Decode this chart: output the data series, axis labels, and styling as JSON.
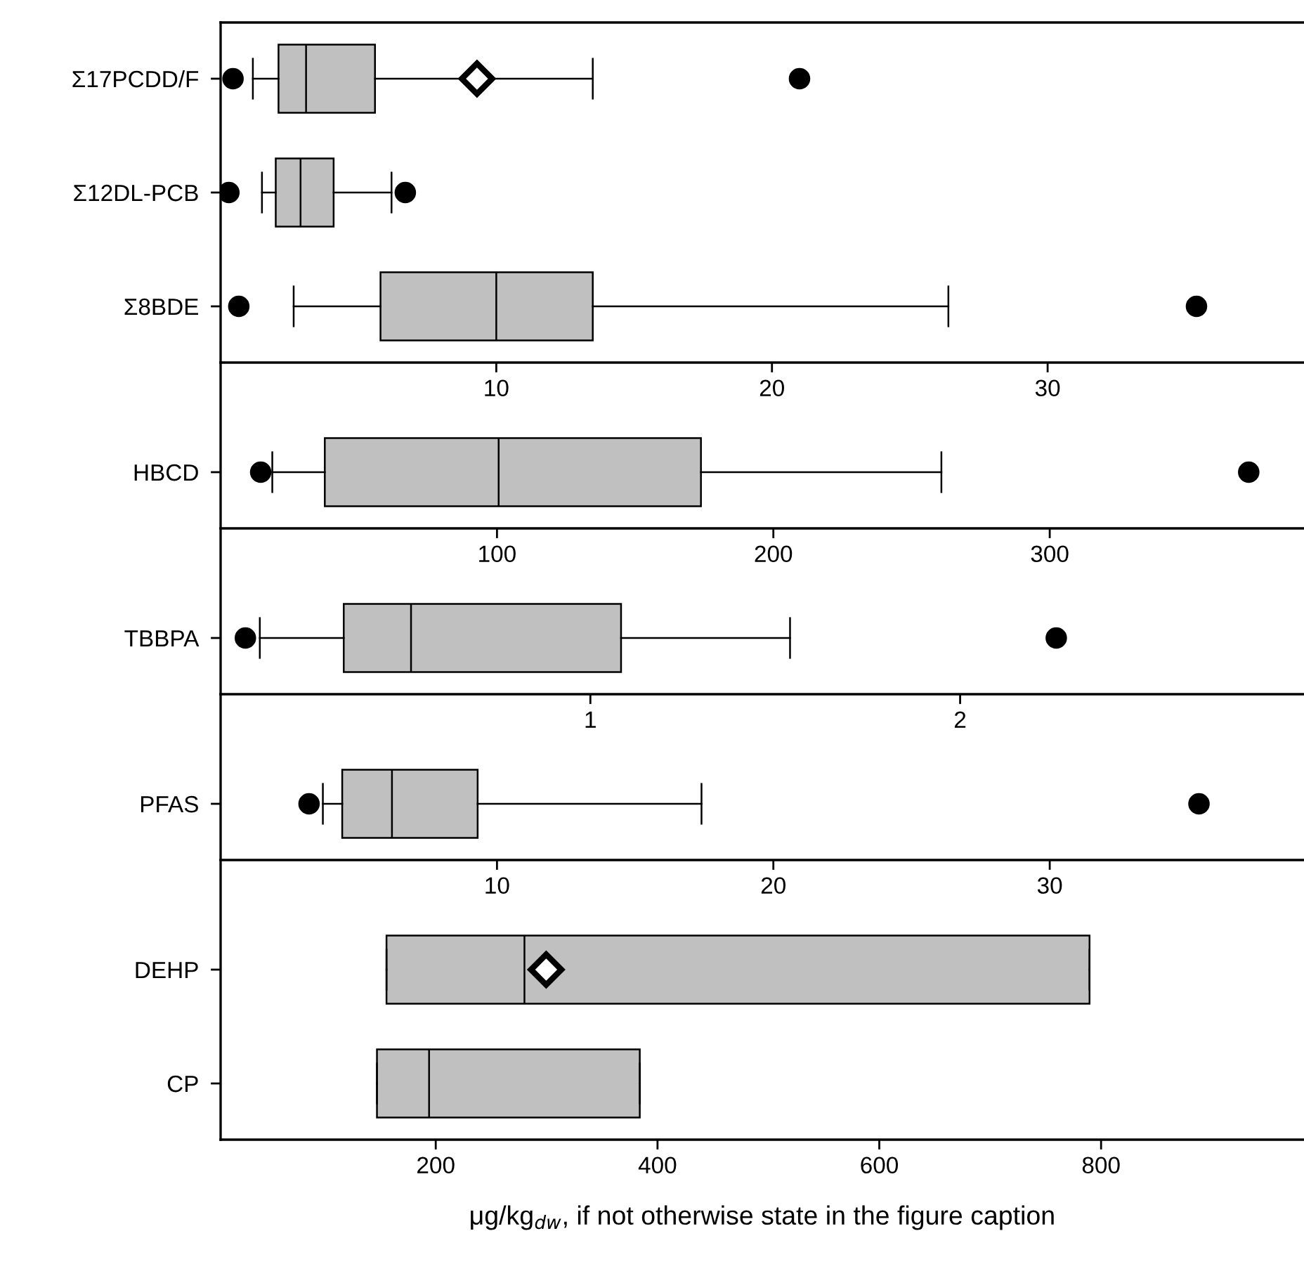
{
  "chart_data": [
    {
      "type": "box",
      "orientation": "horizontal",
      "color": "#c0c0c0",
      "categories": [
        "Σ17PCDD/F",
        "Σ12DL-PCB",
        "Σ8BDE"
      ],
      "boxes": [
        {
          "low": 1.17,
          "q1": 2.1,
          "median": 3.1,
          "q3": 5.6,
          "high": 13.5,
          "mean": 9.3,
          "outliers": [
            0.45,
            21.0
          ]
        },
        {
          "low": 1.5,
          "q1": 2.0,
          "median": 2.9,
          "q3": 4.1,
          "high": 6.2,
          "outliers": [
            0.3,
            6.7
          ]
        },
        {
          "low": 2.65,
          "q1": 5.8,
          "median": 10.0,
          "q3": 13.5,
          "high": 26.4,
          "outliers": [
            0.66,
            35.4
          ]
        }
      ],
      "xlim": [
        0,
        39.3
      ],
      "xticks": [
        10,
        20,
        30
      ],
      "grid": false
    },
    {
      "type": "box",
      "orientation": "horizontal",
      "color": "#c0c0c0",
      "categories": [
        "HBCD"
      ],
      "boxes": [
        {
          "low": 18.7,
          "q1": 37.7,
          "median": 100.6,
          "q3": 173.8,
          "high": 260.8,
          "outliers": [
            14.5,
            372
          ]
        }
      ],
      "xlim": [
        0,
        392
      ],
      "xticks": [
        100,
        200,
        300
      ],
      "grid": false
    },
    {
      "type": "box",
      "orientation": "horizontal",
      "color": "#c0c0c0",
      "categories": [
        "TBBPA"
      ],
      "boxes": [
        {
          "low": 0.106,
          "q1": 0.333,
          "median": 0.515,
          "q3": 1.083,
          "high": 1.54,
          "outliers": [
            0.067,
            2.26
          ]
        }
      ],
      "xlim": [
        0,
        2.93
      ],
      "xticks": [
        1,
        2
      ],
      "grid": false
    },
    {
      "type": "box",
      "orientation": "horizontal",
      "color": "#c0c0c0",
      "categories": [
        "PFAS"
      ],
      "boxes": [
        {
          "low": 3.7,
          "q1": 4.4,
          "median": 6.2,
          "q3": 9.3,
          "high": 17.4,
          "outliers": [
            3.2,
            35.4
          ]
        }
      ],
      "xlim": [
        0,
        39.2
      ],
      "xticks": [
        10,
        20,
        30
      ],
      "grid": false
    },
    {
      "type": "box",
      "orientation": "horizontal",
      "color": "#c0c0c0",
      "categories": [
        "DEHP",
        "CP"
      ],
      "boxes": [
        {
          "low": 155.6,
          "q1": 155.6,
          "median": 280,
          "q3": 789.6,
          "high": 789.6,
          "mean": 299.6
        },
        {
          "low": 147,
          "q1": 147,
          "median": 194,
          "q3": 384,
          "high": 384
        }
      ],
      "xlim": [
        6,
        983
      ],
      "xticks": [
        200,
        400,
        600,
        800
      ],
      "xlabel": "μg/kg$_{dw}$, if not otherwise state in the figure caption",
      "grid": false
    }
  ]
}
